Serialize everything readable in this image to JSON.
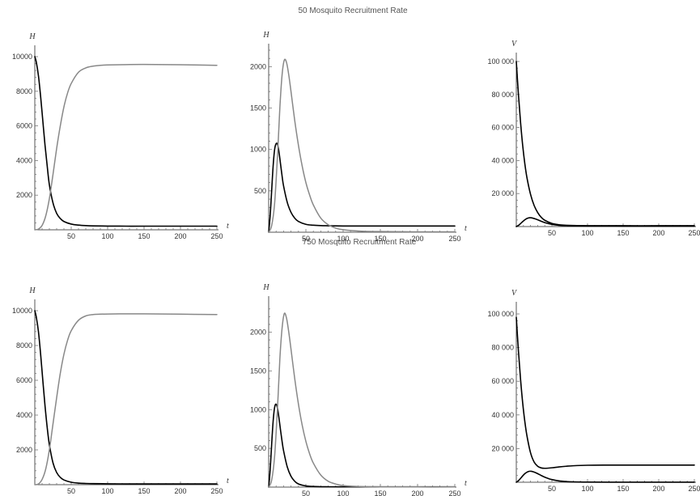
{
  "titles": [
    "50 Mosquito Recruitment Rate",
    "750 Mosquito Recruitment Rate"
  ],
  "chart_data": [
    {
      "type": "line",
      "row": 0,
      "col": 0,
      "xlabel": "t",
      "ylabel": "H",
      "xlim": [
        0,
        250
      ],
      "ylim": [
        0,
        10000
      ],
      "xticks": [
        50,
        100,
        150,
        200,
        250
      ],
      "xtick_labels": [
        "50",
        "100",
        "150",
        "200",
        "250"
      ],
      "yticks": [
        2000,
        4000,
        6000,
        8000,
        10000
      ],
      "ytick_labels": [
        "2000",
        "4000",
        "6000",
        "8000",
        "10000"
      ],
      "series": [
        {
          "color": "#000000",
          "x": [
            0,
            2,
            5,
            8,
            11,
            14,
            17,
            20,
            25,
            30,
            35,
            40,
            50,
            60,
            70,
            80,
            100,
            125,
            150,
            200,
            250
          ],
          "y": [
            10000,
            9700,
            8900,
            7700,
            6300,
            4900,
            3700,
            2600,
            1550,
            950,
            650,
            480,
            330,
            270,
            240,
            225,
            215,
            210,
            210,
            210,
            210
          ]
        },
        {
          "color": "#888888",
          "x": [
            0,
            5,
            10,
            15,
            20,
            25,
            30,
            35,
            40,
            45,
            50,
            60,
            70,
            80,
            90,
            100,
            125,
            150,
            200,
            250
          ],
          "y": [
            0,
            40,
            250,
            800,
            1800,
            3200,
            4700,
            6000,
            7100,
            7900,
            8450,
            9100,
            9350,
            9450,
            9500,
            9520,
            9540,
            9550,
            9530,
            9500
          ]
        }
      ]
    },
    {
      "type": "line",
      "row": 0,
      "col": 1,
      "xlabel": "t",
      "ylabel": "H",
      "xlim": [
        0,
        250
      ],
      "ylim": [
        0,
        2200
      ],
      "xticks": [
        50,
        100,
        150,
        200,
        250
      ],
      "xtick_labels": [
        "50",
        "100",
        "150",
        "200",
        "250"
      ],
      "yticks": [
        500,
        1000,
        1500,
        2000
      ],
      "ytick_labels": [
        "500",
        "1000",
        "1500",
        "2000"
      ],
      "series": [
        {
          "color": "#000000",
          "x": [
            0,
            2,
            4,
            6,
            8,
            10,
            12,
            14,
            16,
            18,
            20,
            25,
            30,
            35,
            40,
            50,
            60,
            70,
            80,
            100,
            150,
            200,
            250
          ],
          "y": [
            0,
            200,
            500,
            800,
            1000,
            1070,
            1060,
            960,
            820,
            680,
            560,
            360,
            240,
            170,
            130,
            95,
            85,
            80,
            78,
            75,
            75,
            75,
            75
          ]
        },
        {
          "color": "#888888",
          "x": [
            0,
            4,
            8,
            12,
            15,
            18,
            21,
            24,
            27,
            30,
            35,
            40,
            45,
            50,
            55,
            60,
            70,
            80,
            90,
            100,
            125,
            150,
            200,
            250
          ],
          "y": [
            0,
            80,
            350,
            950,
            1500,
            1900,
            2080,
            2050,
            1900,
            1700,
            1350,
            1050,
            800,
            600,
            450,
            330,
            170,
            90,
            50,
            30,
            12,
            8,
            5,
            5
          ]
        }
      ]
    },
    {
      "type": "line",
      "row": 0,
      "col": 2,
      "xlabel": "t",
      "ylabel": "V",
      "xlim": [
        0,
        250
      ],
      "ylim": [
        0,
        100000
      ],
      "xticks": [
        50,
        100,
        150,
        200,
        250
      ],
      "xtick_labels": [
        "50",
        "100",
        "150",
        "200",
        "250"
      ],
      "yticks": [
        20000,
        40000,
        60000,
        80000,
        100000
      ],
      "ytick_labels": [
        "20 000",
        "40 000",
        "60 000",
        "80 000",
        "100 000"
      ],
      "series": [
        {
          "color": "#000000",
          "x": [
            0,
            3,
            6,
            9,
            12,
            15,
            20,
            25,
            30,
            35,
            40,
            50,
            60,
            70,
            80,
            100,
            150,
            200,
            250
          ],
          "y": [
            100000,
            80000,
            63000,
            49000,
            38000,
            29500,
            19500,
            12800,
            8500,
            5600,
            3800,
            1900,
            1100,
            800,
            650,
            550,
            500,
            500,
            500
          ]
        },
        {
          "color": "#000000",
          "x": [
            0,
            3,
            6,
            9,
            12,
            15,
            18,
            21,
            24,
            27,
            30,
            35,
            40,
            45,
            50,
            60,
            70,
            80,
            100,
            150,
            200,
            250
          ],
          "y": [
            0,
            700,
            1800,
            3000,
            4100,
            4900,
            5300,
            5300,
            5000,
            4600,
            4100,
            3200,
            2400,
            1800,
            1300,
            750,
            500,
            400,
            350,
            300,
            300,
            300
          ]
        }
      ]
    },
    {
      "type": "line",
      "row": 1,
      "col": 0,
      "xlabel": "t",
      "ylabel": "H",
      "xlim": [
        0,
        250
      ],
      "ylim": [
        0,
        10000
      ],
      "xticks": [
        50,
        100,
        150,
        200,
        250
      ],
      "xtick_labels": [
        "50",
        "100",
        "150",
        "200",
        "250"
      ],
      "yticks": [
        2000,
        4000,
        6000,
        8000,
        10000
      ],
      "ytick_labels": [
        "2000",
        "4000",
        "6000",
        "8000",
        "10000"
      ],
      "series": [
        {
          "color": "#000000",
          "x": [
            0,
            2,
            5,
            8,
            11,
            14,
            17,
            20,
            25,
            30,
            35,
            40,
            50,
            60,
            70,
            80,
            100,
            125,
            150,
            200,
            250
          ],
          "y": [
            10000,
            9650,
            8800,
            7500,
            6000,
            4550,
            3300,
            2300,
            1250,
            700,
            420,
            270,
            140,
            90,
            70,
            60,
            50,
            45,
            45,
            45,
            45
          ]
        },
        {
          "color": "#888888",
          "x": [
            0,
            5,
            10,
            15,
            20,
            25,
            30,
            35,
            40,
            45,
            50,
            60,
            70,
            80,
            90,
            100,
            125,
            150,
            200,
            250
          ],
          "y": [
            0,
            40,
            300,
            900,
            2000,
            3500,
            5000,
            6400,
            7500,
            8300,
            8850,
            9450,
            9700,
            9780,
            9800,
            9810,
            9820,
            9820,
            9800,
            9780
          ]
        }
      ]
    },
    {
      "type": "line",
      "row": 1,
      "col": 1,
      "xlabel": "t",
      "ylabel": "H",
      "xlim": [
        0,
        250
      ],
      "ylim": [
        0,
        2350
      ],
      "xticks": [
        50,
        100,
        150,
        200,
        250
      ],
      "xtick_labels": [
        "50",
        "100",
        "150",
        "200",
        "250"
      ],
      "yticks": [
        500,
        1000,
        1500,
        2000
      ],
      "ytick_labels": [
        "500",
        "1000",
        "1500",
        "2000"
      ],
      "series": [
        {
          "color": "#000000",
          "x": [
            0,
            2,
            4,
            6,
            8,
            10,
            12,
            14,
            16,
            18,
            20,
            25,
            30,
            35,
            40,
            50,
            60,
            70,
            80,
            100,
            150,
            200,
            250
          ],
          "y": [
            0,
            220,
            550,
            850,
            1030,
            1070,
            1010,
            880,
            730,
            590,
            470,
            260,
            140,
            75,
            40,
            15,
            8,
            5,
            4,
            3,
            3,
            3,
            3
          ]
        },
        {
          "color": "#888888",
          "x": [
            0,
            4,
            8,
            12,
            15,
            18,
            21,
            24,
            27,
            30,
            35,
            40,
            45,
            50,
            55,
            60,
            70,
            80,
            90,
            100,
            125,
            150,
            200,
            250
          ],
          "y": [
            0,
            90,
            400,
            1050,
            1650,
            2050,
            2240,
            2180,
            2000,
            1780,
            1400,
            1070,
            800,
            590,
            430,
            310,
            155,
            75,
            40,
            20,
            6,
            3,
            2,
            2
          ]
        }
      ]
    },
    {
      "type": "line",
      "row": 1,
      "col": 2,
      "xlabel": "t",
      "ylabel": "V",
      "xlim": [
        0,
        250
      ],
      "ylim": [
        0,
        100000
      ],
      "xticks": [
        50,
        100,
        150,
        200,
        250
      ],
      "xtick_labels": [
        "50",
        "100",
        "150",
        "200",
        "250"
      ],
      "yticks": [
        20000,
        40000,
        60000,
        80000,
        100000
      ],
      "ytick_labels": [
        "20 000",
        "40 000",
        "60 000",
        "80 000",
        "100 000"
      ],
      "series": [
        {
          "color": "#000000",
          "x": [
            0,
            3,
            6,
            9,
            12,
            15,
            20,
            25,
            30,
            35,
            40,
            50,
            60,
            70,
            80,
            100,
            125,
            150,
            200,
            250
          ],
          "y": [
            98000,
            78000,
            61000,
            47000,
            36000,
            27500,
            17500,
            12000,
            9500,
            8500,
            8300,
            8600,
            9100,
            9500,
            9800,
            10100,
            10200,
            10200,
            10200,
            10200
          ]
        },
        {
          "color": "#000000",
          "x": [
            0,
            3,
            6,
            9,
            12,
            15,
            18,
            21,
            24,
            27,
            30,
            35,
            40,
            45,
            50,
            60,
            70,
            80,
            100,
            150,
            200,
            250
          ],
          "y": [
            0,
            900,
            2300,
            3800,
            5100,
            6000,
            6500,
            6500,
            6200,
            5700,
            5100,
            4000,
            3000,
            2200,
            1600,
            800,
            400,
            200,
            80,
            20,
            10,
            10
          ]
        }
      ]
    }
  ]
}
